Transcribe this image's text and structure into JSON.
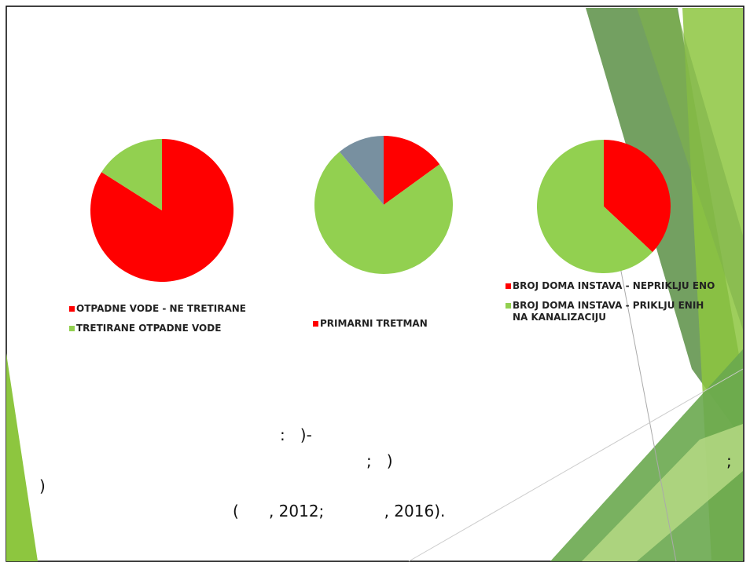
{
  "chart_data": [
    {
      "type": "pie",
      "categories": [
        "OTPADNE VODE - NE TRETIRANE",
        "TRETIRANE OTPADNE VODE"
      ],
      "values": [
        84,
        16
      ],
      "colors": [
        "#ff0000",
        "#92d050"
      ]
    },
    {
      "type": "pie",
      "categories": [
        "PRIMARNI TRETMAN",
        null,
        null
      ],
      "values": [
        15,
        74,
        11
      ],
      "colors": [
        "#ff0000",
        "#92d050",
        "#7890a0"
      ]
    },
    {
      "type": "pie",
      "categories": [
        "BROJ DOMA  INSTAVA - NEPRIKLJU  ENO",
        "BROJ DOMA  INSTAVA - PRIKLJU  ENIH NA KANALIZACIJU"
      ],
      "values": [
        37,
        63
      ],
      "colors": [
        "#ff0000",
        "#92d050"
      ]
    }
  ],
  "text_lines": [
    ":   )-",
    ";   )",
    ";",
    ")",
    "(      , 2012;            , 2016)."
  ]
}
